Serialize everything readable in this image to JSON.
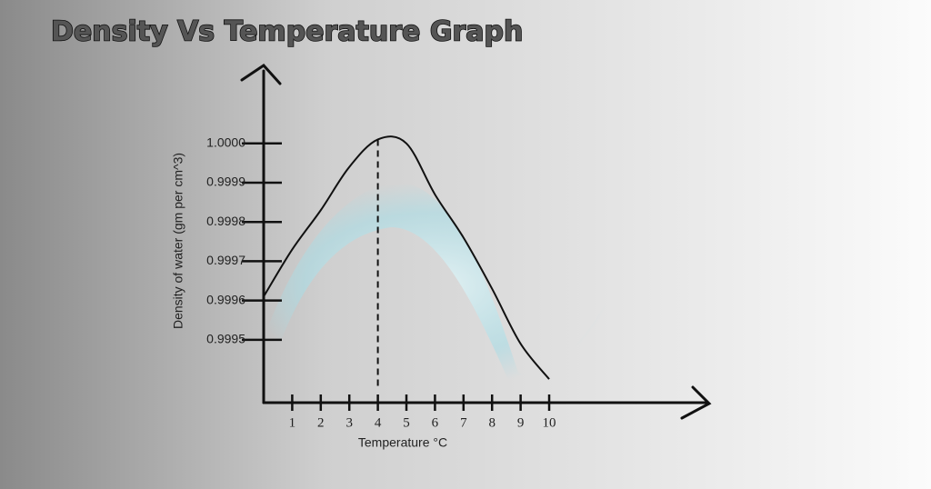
{
  "chart_data": {
    "type": "line",
    "title": "Density Vs Temperature Graph",
    "x_label": "Temperature °C",
    "y_label": "Density of water (gm per cm^3)",
    "x": [
      0,
      1,
      2,
      3,
      4,
      5,
      6,
      7,
      8,
      9,
      10
    ],
    "values": [
      0.99961,
      0.99973,
      0.99983,
      0.99994,
      1.00001,
      1.0,
      0.99987,
      0.99976,
      0.99963,
      0.99949,
      0.9994
    ],
    "color": "#111111",
    "vline": 4,
    "xlim": [
      0,
      15.4
    ],
    "ylim": [
      0.99934,
      1.00018
    ],
    "xticks": [
      1,
      2,
      3,
      4,
      5,
      6,
      7,
      8,
      9,
      10
    ],
    "yticks": [
      {
        "value": 1,
        "label": "1.0000"
      },
      0.9999,
      0.9998,
      0.9997,
      0.9996,
      0.9995
    ]
  }
}
